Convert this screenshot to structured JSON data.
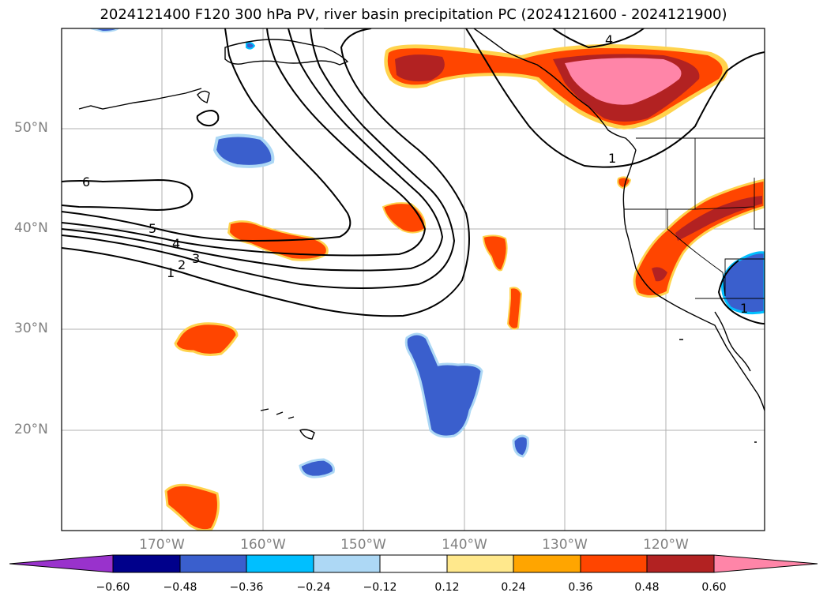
{
  "title": "2024121400 F120 300 hPa PV, river basin precipitation PC (2024121600 - 2024121900)",
  "map": {
    "lat_labels": [
      "50°N",
      "40°N",
      "30°N",
      "20°N"
    ],
    "lon_labels": [
      "170°W",
      "160°W",
      "150°W",
      "140°W",
      "130°W",
      "120°W"
    ],
    "contour_labels": [
      "6",
      "5",
      "4",
      "3",
      "2",
      "1",
      "1",
      "1",
      "4"
    ]
  },
  "colorbar": {
    "tick_labels": [
      "−0.60",
      "−0.48",
      "−0.36",
      "−0.24",
      "−0.12",
      "0.12",
      "0.24",
      "0.36",
      "0.48",
      "0.60"
    ],
    "colors": [
      "#9932cc",
      "#00008b",
      "#3a5fcd",
      "#00bfff",
      "#add8f5",
      "#ffffff",
      "#ffe88c",
      "#ffa500",
      "#ff4500",
      "#b22222",
      "#ff85a8"
    ]
  }
}
